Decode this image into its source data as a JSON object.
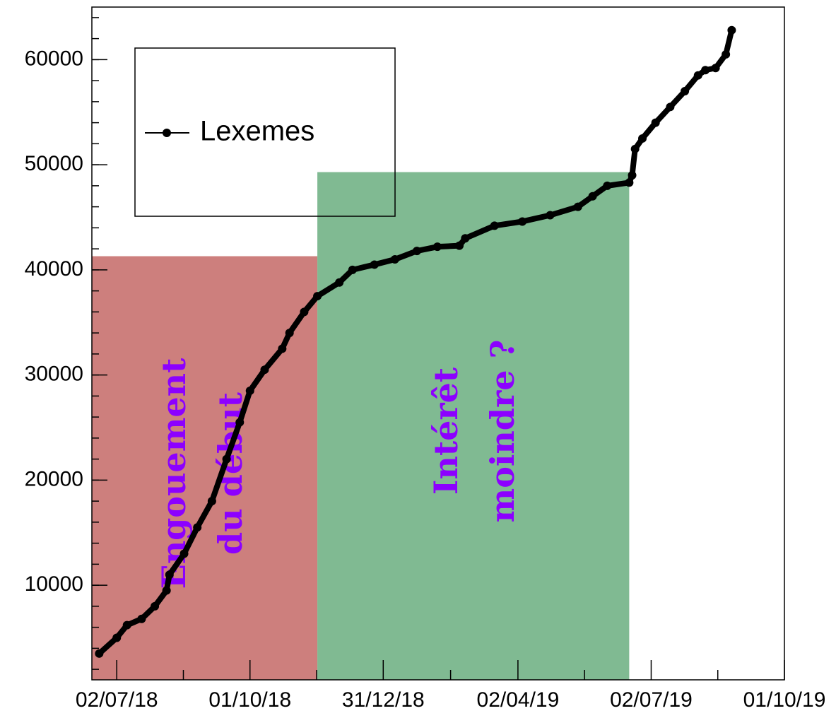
{
  "chart_data": {
    "type": "line",
    "x": [
      "2018-06-20",
      "2018-07-02",
      "2018-07-09",
      "2018-07-19",
      "2018-07-28",
      "2018-08-05",
      "2018-08-07",
      "2018-08-17",
      "2018-08-26",
      "2018-09-05",
      "2018-09-15",
      "2018-09-24",
      "2018-10-01",
      "2018-10-11",
      "2018-10-23",
      "2018-10-28",
      "2018-11-07",
      "2018-11-16",
      "2018-12-01",
      "2018-12-10",
      "2018-12-25",
      "2019-01-08",
      "2019-01-23",
      "2019-02-06",
      "2019-02-21",
      "2019-02-25",
      "2019-03-17",
      "2019-04-05",
      "2019-04-24",
      "2019-05-13",
      "2019-05-23",
      "2019-06-02",
      "2019-06-17",
      "2019-06-19",
      "2019-06-21",
      "2019-06-26",
      "2019-07-05",
      "2019-07-15",
      "2019-07-25",
      "2019-08-03",
      "2019-08-08",
      "2019-08-15",
      "2019-08-22",
      "2019-08-26"
    ],
    "series": [
      {
        "name": "Lexemes",
        "color": "#000000",
        "values": [
          3500,
          5000,
          6200,
          6800,
          8000,
          9500,
          11000,
          13000,
          15500,
          18000,
          22000,
          25500,
          28500,
          30500,
          32500,
          34000,
          36000,
          37500,
          38800,
          40000,
          40500,
          41000,
          41800,
          42200,
          42300,
          43000,
          44200,
          44600,
          45200,
          46000,
          47000,
          48000,
          48300,
          49000,
          51500,
          52500,
          54000,
          55500,
          57000,
          58500,
          59000,
          59200,
          60500,
          62800
        ]
      }
    ],
    "xlim": [
      "2018-06-15",
      "2019-10-01"
    ],
    "xticks": [
      {
        "value": "2018-07-02",
        "label": "02/07/18"
      },
      {
        "value": "2018-10-01",
        "label": "01/10/18"
      },
      {
        "value": "2018-12-31",
        "label": "31/12/18"
      },
      {
        "value": "2019-04-02",
        "label": "02/04/19"
      },
      {
        "value": "2019-07-02",
        "label": "02/07/19"
      },
      {
        "value": "2019-10-01",
        "label": "01/10/19"
      }
    ],
    "ylim": [
      1000,
      65000
    ],
    "yticks": [
      10000,
      20000,
      30000,
      40000,
      50000,
      60000
    ],
    "legend": "upper-left",
    "regions": [
      {
        "x0": "2018-06-15",
        "x1": "2018-11-16",
        "y": 41300,
        "color": "#cd7f7d",
        "text": [
          "Engouement",
          "du début"
        ]
      },
      {
        "x0": "2018-11-16",
        "x1": "2019-06-17",
        "y": 49300,
        "color": "#80ba92",
        "text": [
          "Intérêt",
          "moindre ?"
        ]
      }
    ],
    "annotation_color": "#8c00ff"
  }
}
